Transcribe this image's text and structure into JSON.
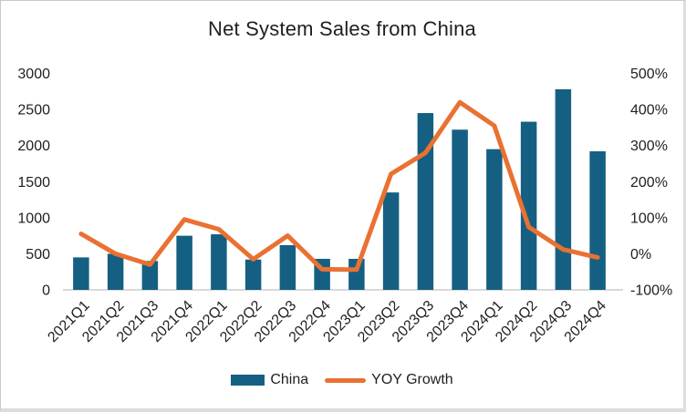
{
  "chart_data": {
    "type": "combo_bar_line",
    "title": "Net System Sales from China",
    "categories": [
      "2021Q1",
      "2021Q2",
      "2021Q3",
      "2021Q4",
      "2022Q1",
      "2022Q2",
      "2022Q3",
      "2022Q4",
      "2023Q1",
      "2023Q2",
      "2023Q3",
      "2023Q4",
      "2024Q1",
      "2024Q2",
      "2024Q3",
      "2024Q4"
    ],
    "series": [
      {
        "name": "China",
        "type": "bar",
        "axis": "left",
        "color": "#156082",
        "values": [
          450,
          500,
          400,
          750,
          770,
          420,
          620,
          430,
          430,
          1350,
          2450,
          2220,
          1950,
          2330,
          2780,
          1920
        ]
      },
      {
        "name": "YOY Growth",
        "type": "line",
        "axis": "right",
        "color": "#E97132",
        "values": [
          55,
          0,
          -30,
          95,
          68,
          -15,
          50,
          -43,
          -44,
          221,
          280,
          420,
          355,
          74,
          12,
          -10
        ]
      }
    ],
    "left_axis": {
      "min": 0,
      "max": 3000,
      "step": 500,
      "tick_labels": [
        "0",
        "500",
        "1000",
        "1500",
        "2000",
        "2500",
        "3000"
      ]
    },
    "right_axis": {
      "min": -100,
      "max": 500,
      "step": 100,
      "unit": "%",
      "tick_labels": [
        "-100%",
        "0%",
        "100%",
        "200%",
        "300%",
        "400%",
        "500%"
      ]
    },
    "legend": {
      "position": "bottom",
      "entries": [
        {
          "label": "China",
          "swatch": "bar",
          "color": "#156082"
        },
        {
          "label": "YOY Growth",
          "swatch": "line",
          "color": "#E97132"
        }
      ]
    },
    "grid": "off",
    "axis_line_color": "#D9D9D9",
    "text_color": "#1f1f1f",
    "background": "#ffffff"
  }
}
